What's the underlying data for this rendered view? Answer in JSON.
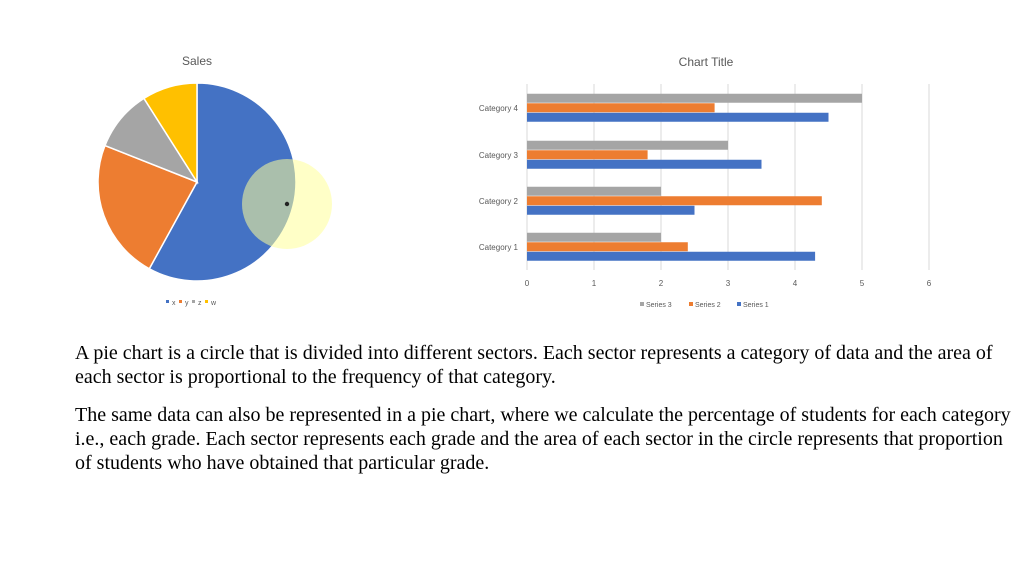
{
  "chart_data": [
    {
      "type": "pie",
      "title": "Sales",
      "categories": [
        "x",
        "y",
        "z",
        "w"
      ],
      "values": [
        58,
        23,
        10,
        9
      ],
      "colors": [
        "#4472c4",
        "#ed7d31",
        "#a5a5a5",
        "#ffc000"
      ],
      "legend": "bottom"
    },
    {
      "type": "bar",
      "orientation": "horizontal",
      "title": "Chart Title",
      "categories": [
        "Category 1",
        "Category 2",
        "Category 3",
        "Category 4"
      ],
      "series": [
        {
          "name": "Series 1",
          "values": [
            4.3,
            2.5,
            3.5,
            4.5
          ],
          "color": "#4472c4"
        },
        {
          "name": "Series 2",
          "values": [
            2.4,
            4.4,
            1.8,
            2.8
          ],
          "color": "#ed7d31"
        },
        {
          "name": "Series 3",
          "values": [
            2,
            2,
            3,
            5
          ],
          "color": "#a5a5a5"
        }
      ],
      "xlim": [
        0,
        6
      ],
      "xticks": [
        "0",
        "1",
        "2",
        "3",
        "4",
        "5",
        "6"
      ],
      "grid": true,
      "legend": "bottom"
    }
  ],
  "cursor_highlight": {
    "color": "#ffff99"
  },
  "paragraphs": [
    "A pie chart is a circle that is divided into different sectors. Each sector represents a category of data and the area of each sector is proportional to the frequency of that category.",
    "The same data can also be represented in a pie chart, where we calculate the percentage of students for each category i.e., each grade. Each sector represents each grade and the area of each sector in the circle represents that proportion of students who have obtained that particular grade."
  ]
}
